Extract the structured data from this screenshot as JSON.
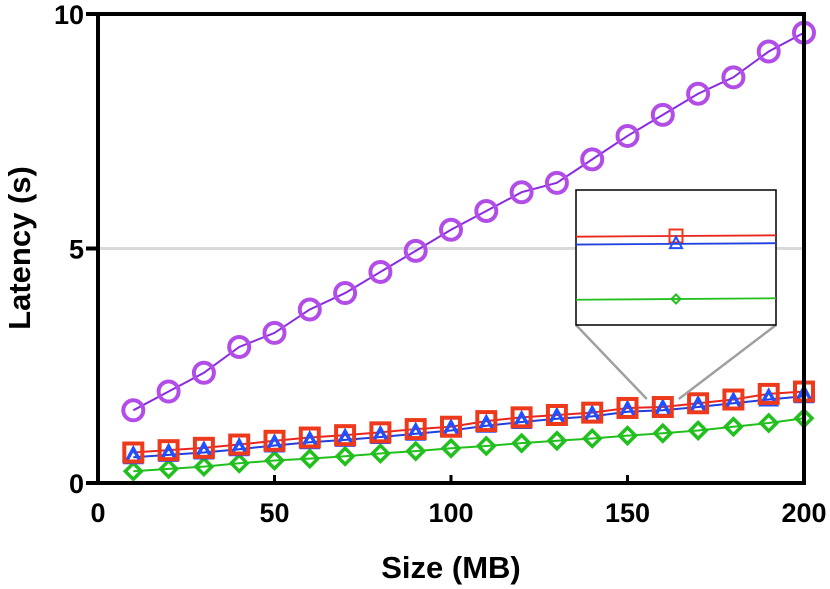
{
  "chart_data": {
    "type": "line",
    "title": "",
    "xlabel": "Size (MB)",
    "ylabel": "Latency (s)",
    "xlim": [
      0,
      200
    ],
    "ylim": [
      0,
      10
    ],
    "xticks": [
      0,
      50,
      100,
      150,
      200
    ],
    "xtick_labels": [
      "0",
      "50",
      "100",
      "150",
      "200"
    ],
    "yticks": [
      0,
      5,
      10
    ],
    "ytick_labels": [
      "0",
      "5",
      "10"
    ],
    "reference_line": {
      "y": 5,
      "color": "#d9d9d9"
    },
    "x": [
      10,
      20,
      30,
      40,
      50,
      60,
      70,
      80,
      90,
      100,
      110,
      120,
      130,
      140,
      150,
      160,
      170,
      180,
      190,
      200
    ],
    "series": [
      {
        "name": "purple-circle",
        "marker": "circle",
        "color": "#8a2be2",
        "marker_color": "#b24de8",
        "values": [
          1.55,
          1.95,
          2.35,
          2.9,
          3.2,
          3.7,
          4.05,
          4.5,
          4.95,
          5.4,
          5.8,
          6.2,
          6.4,
          6.9,
          7.4,
          7.85,
          8.3,
          8.65,
          9.2,
          9.6
        ]
      },
      {
        "name": "red-square",
        "marker": "square",
        "color": "#e8261e",
        "marker_color": "#ee3a1c",
        "values": [
          0.65,
          0.7,
          0.75,
          0.82,
          0.9,
          0.97,
          1.02,
          1.08,
          1.15,
          1.2,
          1.32,
          1.4,
          1.45,
          1.5,
          1.6,
          1.62,
          1.7,
          1.78,
          1.9,
          1.95
        ]
      },
      {
        "name": "blue-triangle",
        "marker": "triangle",
        "color": "#1f3fe0",
        "marker_color": "#2050ff",
        "values": [
          0.55,
          0.6,
          0.65,
          0.72,
          0.8,
          0.87,
          0.92,
          0.98,
          1.05,
          1.12,
          1.22,
          1.3,
          1.37,
          1.42,
          1.52,
          1.55,
          1.62,
          1.7,
          1.78,
          1.85
        ]
      },
      {
        "name": "green-diamond",
        "marker": "diamond",
        "color": "#22c01e",
        "marker_color": "#22c01e",
        "values": [
          0.25,
          0.3,
          0.35,
          0.42,
          0.48,
          0.52,
          0.57,
          0.63,
          0.68,
          0.74,
          0.79,
          0.85,
          0.9,
          0.95,
          1.01,
          1.06,
          1.12,
          1.2,
          1.28,
          1.38
        ]
      }
    ],
    "inset": {
      "zoom_x": 160,
      "connector_color": "#a0a0a0",
      "series_order": [
        "red-square",
        "blue-triangle",
        "green-diamond"
      ]
    }
  }
}
